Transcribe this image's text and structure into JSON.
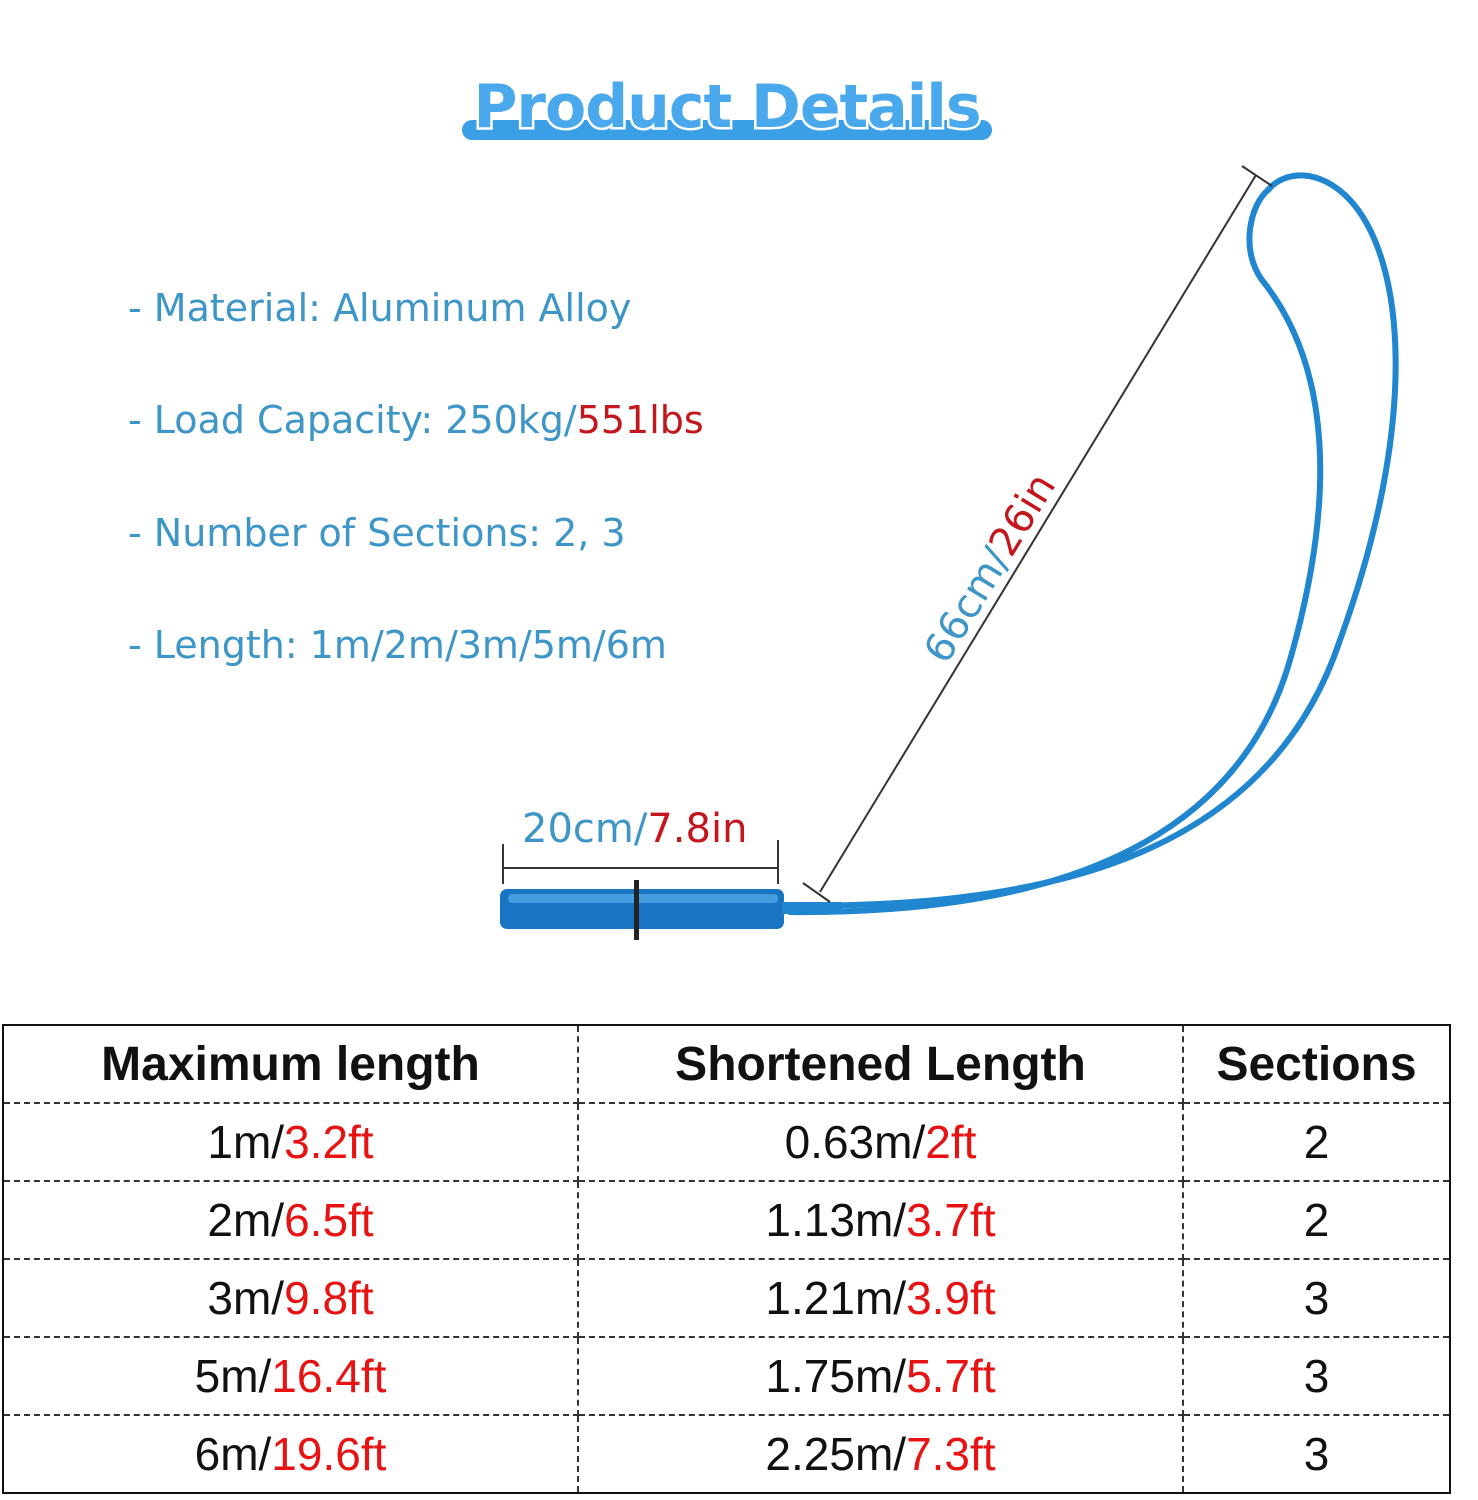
{
  "title": "Product Details",
  "colors": {
    "title_blue": "#4aa8ec",
    "spec_blue": "#3d96c7",
    "product_blue": "#1d7fc9",
    "accent_red": "#c4171d",
    "table_red": "#e81212"
  },
  "specs": [
    {
      "prefix": "- ",
      "label": "Material: ",
      "value": "Aluminum Alloy",
      "value_red": ""
    },
    {
      "prefix": "- ",
      "label": "Load Capacity: ",
      "value": "250kg/",
      "value_red": "551lbs"
    },
    {
      "prefix": "- ",
      "label": "Number of Sections: ",
      "value": "2, 3",
      "value_red": ""
    },
    {
      "prefix": "- ",
      "label": "Length: ",
      "value": "1m/2m/3m/5m/6m",
      "value_red": ""
    }
  ],
  "dimensions": {
    "handle": {
      "metric": "20cm/",
      "imperial": "7.8in"
    },
    "loop": {
      "metric": "66cm/",
      "imperial": "26in"
    }
  },
  "table": {
    "headers": [
      "Maximum length",
      "Shortened Length",
      "Sections"
    ],
    "rows": [
      {
        "max_m": "1m/",
        "max_ft": "3.2ft",
        "short_m": "0.63m/",
        "short_ft": "2ft",
        "sections": "2"
      },
      {
        "max_m": "2m/",
        "max_ft": "6.5ft",
        "short_m": "1.13m/",
        "short_ft": "3.7ft",
        "sections": "2"
      },
      {
        "max_m": "3m/",
        "max_ft": "9.8ft",
        "short_m": "1.21m/",
        "short_ft": "3.9ft",
        "sections": "3"
      },
      {
        "max_m": "5m/",
        "max_ft": "16.4ft",
        "short_m": "1.75m/",
        "short_ft": "5.7ft",
        "sections": "3"
      },
      {
        "max_m": "6m/",
        "max_ft": "19.6ft",
        "short_m": "2.25m/",
        "short_ft": "7.3ft",
        "sections": "3"
      }
    ]
  }
}
